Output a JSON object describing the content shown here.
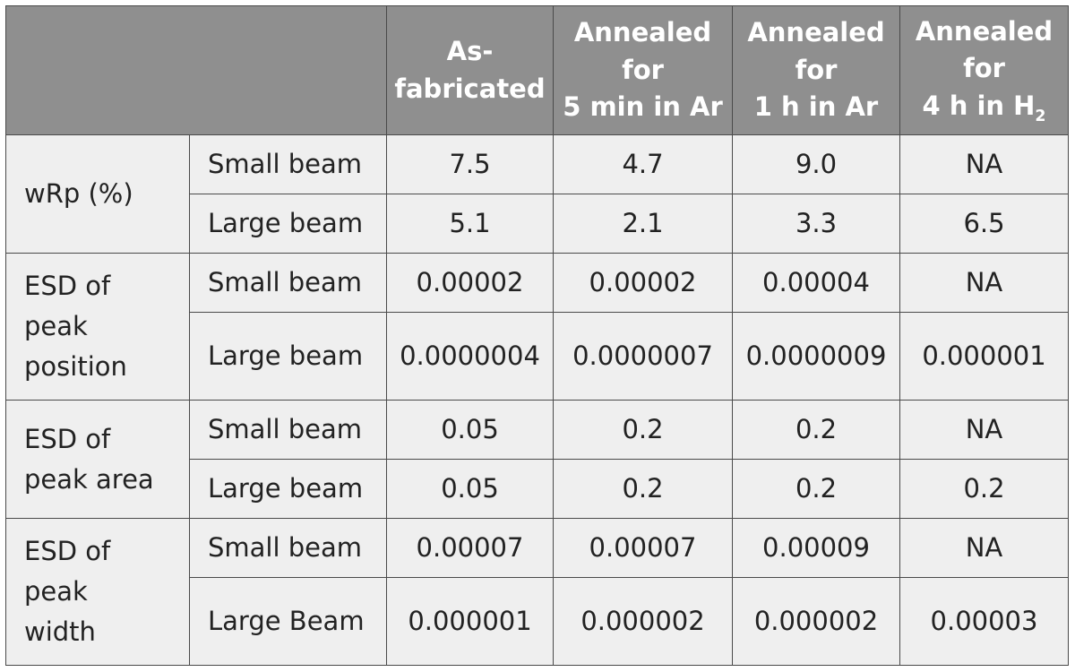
{
  "table": {
    "headers": [
      {
        "lines": [
          "As-",
          "fabricated"
        ]
      },
      {
        "lines": [
          "Annealed",
          "for",
          "5 min in Ar"
        ]
      },
      {
        "lines": [
          "Annealed",
          "for",
          "1 h in Ar"
        ]
      },
      {
        "lines": [
          "Annealed",
          "for",
          "4 h in H"
        ],
        "subscript": "2"
      }
    ],
    "groups": [
      {
        "label_lines": [
          "wRp (%)"
        ],
        "rows": [
          {
            "beam": "Small beam",
            "values": [
              "7.5",
              "4.7",
              "9.0",
              "NA"
            ]
          },
          {
            "beam": "Large beam",
            "values": [
              "5.1",
              "2.1",
              "3.3",
              "6.5"
            ]
          }
        ]
      },
      {
        "label_lines": [
          "ESD of",
          "peak",
          "position"
        ],
        "rows": [
          {
            "beam": "Small beam",
            "values": [
              "0.00002",
              "0.00002",
              "0.00004",
              "NA"
            ]
          },
          {
            "beam": "Large beam",
            "values": [
              "0.0000004",
              "0.0000007",
              "0.0000009",
              "0.000001"
            ]
          }
        ]
      },
      {
        "label_lines": [
          "ESD of",
          "peak area"
        ],
        "rows": [
          {
            "beam": "Small beam",
            "values": [
              "0.05",
              "0.2",
              "0.2",
              "NA"
            ]
          },
          {
            "beam": "Large beam",
            "values": [
              "0.05",
              "0.2",
              "0.2",
              "0.2"
            ]
          }
        ]
      },
      {
        "label_lines": [
          "ESD of",
          "peak",
          "width"
        ],
        "rows": [
          {
            "beam": "Small beam",
            "values": [
              "0.00007",
              "0.00007",
              "0.00009",
              "NA"
            ]
          },
          {
            "beam": "Large Beam",
            "values": [
              "0.000001",
              "0.000002",
              "0.000002",
              "0.00003"
            ]
          }
        ]
      }
    ]
  }
}
